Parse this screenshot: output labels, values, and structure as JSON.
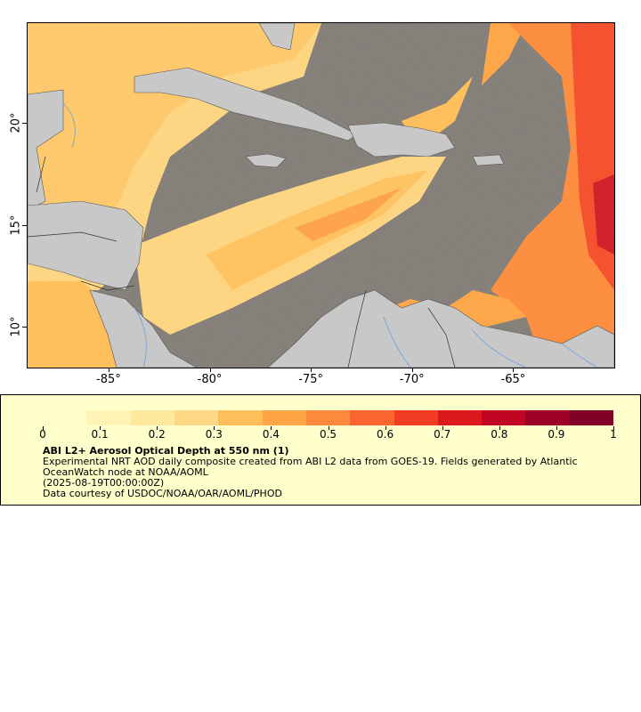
{
  "map": {
    "x_ticks": [
      {
        "label": "-85°",
        "lon": -85
      },
      {
        "label": "-80°",
        "lon": -80
      },
      {
        "label": "-75°",
        "lon": -75
      },
      {
        "label": "-70°",
        "lon": -70
      },
      {
        "label": "-65°",
        "lon": -65
      }
    ],
    "y_ticks": [
      {
        "label": "20°",
        "lat": 20
      },
      {
        "label": "15°",
        "lat": 15
      },
      {
        "label": "10°",
        "lat": 10
      }
    ],
    "lon_range": [
      -89,
      -60
    ],
    "lat_range": [
      8,
      24.9
    ],
    "colors": {
      "land": "#c8c8c8",
      "no_data": "#7a7a7a",
      "rivers": "#6fa0d8",
      "borders": "#444444"
    }
  },
  "legend": {
    "colorbar_labels": [
      "0",
      "0.1",
      "0.2",
      "0.3",
      "0.4",
      "0.5",
      "0.6",
      "0.7",
      "0.8",
      "0.9",
      "1"
    ],
    "colorbar_range": [
      0,
      1
    ],
    "colormap": [
      "#ffffcc",
      "#fff3b5",
      "#ffe99c",
      "#fed884",
      "#febf5a",
      "#fea546",
      "#fd8a3c",
      "#fc6530",
      "#f23c24",
      "#dc1a1e",
      "#c10624",
      "#9c0026",
      "#800026"
    ],
    "title": "ABI L2+ Aerosol Optical Depth at 550 nm (1)",
    "description": "Experimental NRT AOD daily composite created from ABI L2 data from GOES-19. Fields generated by Atlantic OceanWatch node at NOAA/AOML",
    "date": "(2025-08-19T00:00:00Z)",
    "credit": "Data courtesy of USDOC/NOAA/OAR/AOML/PHOD"
  }
}
